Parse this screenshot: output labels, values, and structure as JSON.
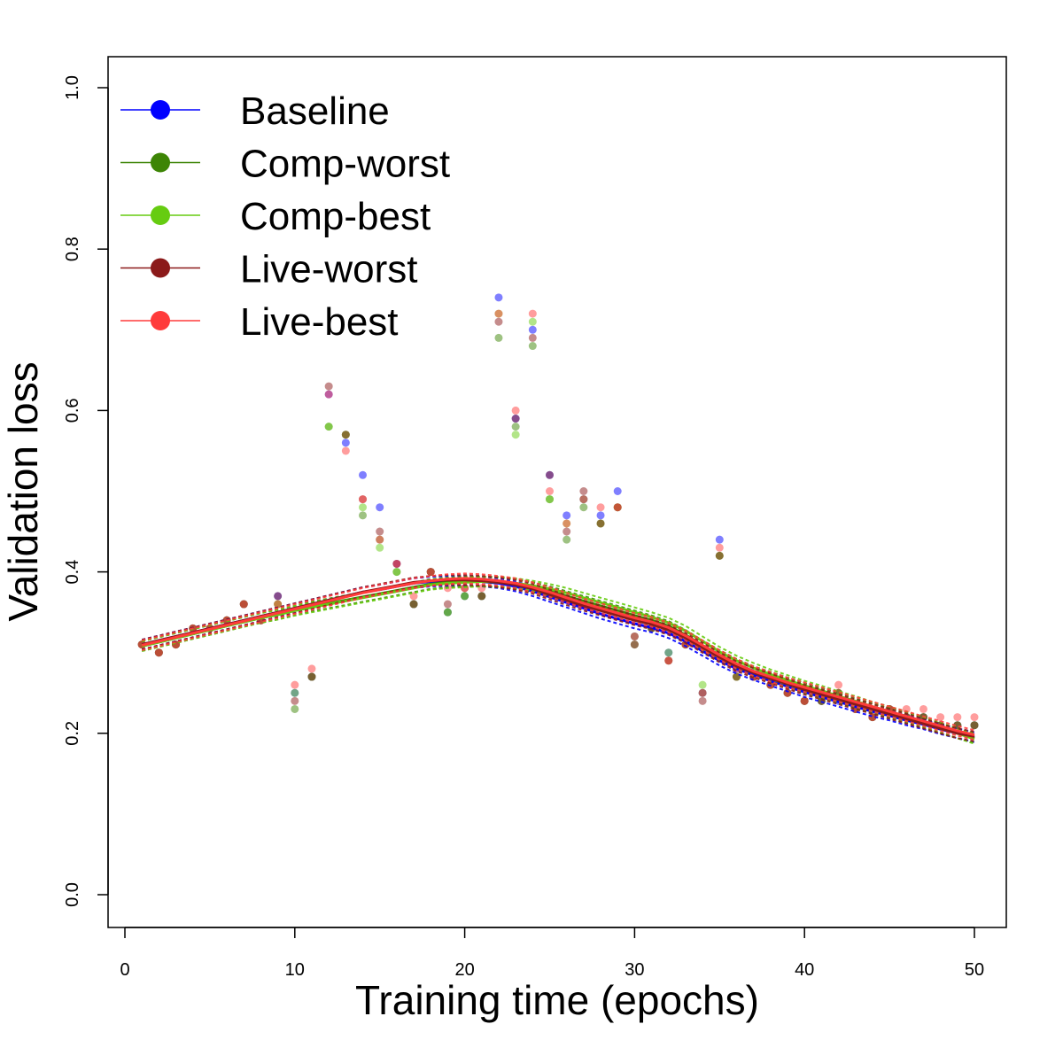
{
  "chart_data": {
    "type": "scatter",
    "title": "",
    "xlabel": "Training time (epochs)",
    "ylabel": "Validation loss",
    "xlim": [
      0,
      52
    ],
    "ylim": [
      -0.035,
      1.04
    ],
    "x_ticks": [
      0,
      10,
      20,
      30,
      40,
      50
    ],
    "x_tick_labels": [
      "0",
      "10",
      "20",
      "30",
      "40",
      "50"
    ],
    "y_ticks": [
      0.0,
      0.2,
      0.4,
      0.6,
      0.8,
      1.0
    ],
    "y_tick_labels": [
      "0.0",
      "0.2",
      "0.4",
      "0.6",
      "0.8",
      "1.0"
    ],
    "grid": false,
    "legend_position": "top-left",
    "x": [
      1,
      2,
      3,
      4,
      5,
      6,
      7,
      8,
      9,
      10,
      11,
      12,
      13,
      14,
      15,
      16,
      17,
      18,
      19,
      20,
      21,
      22,
      23,
      24,
      25,
      26,
      27,
      28,
      29,
      30,
      31,
      32,
      33,
      34,
      35,
      36,
      37,
      38,
      39,
      40,
      41,
      42,
      43,
      44,
      45,
      46,
      47,
      48,
      49,
      50
    ],
    "series": [
      {
        "name": "Baseline",
        "color": "#0000ff",
        "points": [
          0.31,
          0.3,
          0.31,
          0.33,
          0.33,
          0.34,
          0.36,
          0.34,
          0.37,
          0.25,
          0.27,
          0.62,
          0.56,
          0.52,
          0.48,
          0.41,
          0.36,
          0.4,
          0.35,
          0.37,
          0.37,
          0.74,
          0.59,
          0.7,
          0.52,
          0.47,
          0.49,
          0.47,
          0.5,
          0.32,
          0.33,
          0.3,
          0.31,
          0.25,
          0.44,
          0.28,
          0.27,
          0.26,
          0.25,
          0.24,
          0.24,
          0.24,
          0.23,
          0.22,
          0.23,
          0.22,
          0.22,
          0.21,
          0.21,
          0.21
        ],
        "smooth": [
          0.31,
          0.315,
          0.32,
          0.325,
          0.33,
          0.335,
          0.34,
          0.345,
          0.35,
          0.355,
          0.36,
          0.365,
          0.37,
          0.375,
          0.378,
          0.382,
          0.386,
          0.388,
          0.389,
          0.389,
          0.388,
          0.386,
          0.382,
          0.376,
          0.369,
          0.362,
          0.355,
          0.348,
          0.342,
          0.336,
          0.331,
          0.324,
          0.314,
          0.302,
          0.29,
          0.28,
          0.272,
          0.265,
          0.258,
          0.251,
          0.245,
          0.239,
          0.233,
          0.227,
          0.222,
          0.216,
          0.211,
          0.205,
          0.2,
          0.195
        ]
      },
      {
        "name": "Comp-worst",
        "color": "#3d8505",
        "points": [
          0.31,
          0.3,
          0.31,
          0.33,
          0.33,
          0.34,
          0.36,
          0.34,
          0.36,
          0.23,
          0.27,
          0.58,
          0.57,
          0.47,
          0.44,
          0.4,
          0.36,
          0.4,
          0.35,
          0.37,
          0.37,
          0.69,
          0.58,
          0.68,
          0.49,
          0.44,
          0.48,
          0.46,
          0.48,
          0.31,
          0.33,
          0.29,
          0.31,
          0.25,
          0.42,
          0.27,
          0.27,
          0.26,
          0.25,
          0.24,
          0.24,
          0.25,
          0.23,
          0.22,
          0.23,
          0.22,
          0.22,
          0.21,
          0.21,
          0.21
        ],
        "smooth": [
          0.308,
          0.313,
          0.318,
          0.323,
          0.328,
          0.333,
          0.338,
          0.343,
          0.347,
          0.352,
          0.357,
          0.361,
          0.365,
          0.369,
          0.373,
          0.377,
          0.381,
          0.385,
          0.387,
          0.388,
          0.388,
          0.387,
          0.385,
          0.381,
          0.376,
          0.37,
          0.364,
          0.358,
          0.352,
          0.346,
          0.34,
          0.333,
          0.322,
          0.309,
          0.297,
          0.286,
          0.277,
          0.27,
          0.263,
          0.256,
          0.25,
          0.244,
          0.237,
          0.231,
          0.225,
          0.219,
          0.213,
          0.206,
          0.2,
          0.194
        ]
      },
      {
        "name": "Comp-best",
        "color": "#66cc11",
        "points": [
          0.31,
          0.3,
          0.31,
          0.33,
          0.33,
          0.34,
          0.36,
          0.34,
          0.36,
          0.25,
          0.27,
          0.58,
          0.57,
          0.48,
          0.43,
          0.4,
          0.36,
          0.4,
          0.35,
          0.37,
          0.37,
          0.72,
          0.57,
          0.71,
          0.49,
          0.46,
          0.49,
          0.46,
          0.48,
          0.32,
          0.33,
          0.3,
          0.31,
          0.26,
          0.42,
          0.27,
          0.27,
          0.26,
          0.25,
          0.24,
          0.24,
          0.25,
          0.23,
          0.22,
          0.23,
          0.22,
          0.22,
          0.21,
          0.21,
          0.21
        ],
        "smooth": [
          0.308,
          0.313,
          0.318,
          0.323,
          0.328,
          0.333,
          0.338,
          0.343,
          0.347,
          0.352,
          0.356,
          0.36,
          0.364,
          0.368,
          0.372,
          0.376,
          0.38,
          0.384,
          0.386,
          0.387,
          0.388,
          0.388,
          0.386,
          0.383,
          0.379,
          0.374,
          0.368,
          0.362,
          0.356,
          0.35,
          0.344,
          0.337,
          0.327,
          0.314,
          0.301,
          0.29,
          0.281,
          0.273,
          0.266,
          0.259,
          0.253,
          0.246,
          0.24,
          0.233,
          0.227,
          0.221,
          0.214,
          0.207,
          0.2,
          0.193
        ]
      },
      {
        "name": "Live-worst",
        "color": "#8b1a1a",
        "points": [
          0.31,
          0.3,
          0.31,
          0.33,
          0.33,
          0.34,
          0.36,
          0.34,
          0.37,
          0.24,
          0.27,
          0.63,
          0.57,
          0.49,
          0.45,
          0.41,
          0.36,
          0.4,
          0.36,
          0.38,
          0.37,
          0.71,
          0.59,
          0.69,
          0.52,
          0.45,
          0.5,
          0.46,
          0.48,
          0.31,
          0.33,
          0.29,
          0.31,
          0.24,
          0.42,
          0.27,
          0.27,
          0.26,
          0.25,
          0.24,
          0.24,
          0.25,
          0.23,
          0.22,
          0.23,
          0.22,
          0.22,
          0.21,
          0.21,
          0.21
        ],
        "smooth": [
          0.31,
          0.315,
          0.32,
          0.325,
          0.33,
          0.335,
          0.34,
          0.345,
          0.35,
          0.355,
          0.36,
          0.365,
          0.37,
          0.375,
          0.379,
          0.383,
          0.387,
          0.389,
          0.39,
          0.39,
          0.389,
          0.387,
          0.384,
          0.379,
          0.372,
          0.365,
          0.358,
          0.352,
          0.346,
          0.34,
          0.335,
          0.328,
          0.318,
          0.306,
          0.294,
          0.283,
          0.275,
          0.268,
          0.261,
          0.254,
          0.248,
          0.242,
          0.236,
          0.23,
          0.224,
          0.218,
          0.212,
          0.206,
          0.2,
          0.196
        ]
      },
      {
        "name": "Live-best",
        "color": "#ff3b3b",
        "points": [
          0.31,
          0.3,
          0.31,
          0.33,
          0.33,
          0.34,
          0.36,
          0.34,
          0.36,
          0.26,
          0.28,
          0.62,
          0.55,
          0.49,
          0.44,
          0.41,
          0.37,
          0.4,
          0.38,
          0.38,
          0.38,
          0.72,
          0.6,
          0.72,
          0.5,
          0.46,
          0.49,
          0.48,
          0.48,
          0.32,
          0.34,
          0.29,
          0.31,
          0.25,
          0.43,
          0.28,
          0.27,
          0.26,
          0.25,
          0.24,
          0.25,
          0.26,
          0.23,
          0.22,
          0.23,
          0.23,
          0.23,
          0.22,
          0.22,
          0.22
        ],
        "smooth": [
          0.309,
          0.314,
          0.319,
          0.324,
          0.329,
          0.334,
          0.339,
          0.344,
          0.349,
          0.354,
          0.359,
          0.364,
          0.369,
          0.374,
          0.378,
          0.382,
          0.386,
          0.389,
          0.391,
          0.392,
          0.391,
          0.389,
          0.386,
          0.381,
          0.375,
          0.368,
          0.361,
          0.355,
          0.349,
          0.343,
          0.338,
          0.331,
          0.321,
          0.309,
          0.297,
          0.286,
          0.277,
          0.27,
          0.263,
          0.257,
          0.251,
          0.245,
          0.239,
          0.233,
          0.227,
          0.221,
          0.215,
          0.209,
          0.203,
          0.198
        ]
      }
    ]
  }
}
